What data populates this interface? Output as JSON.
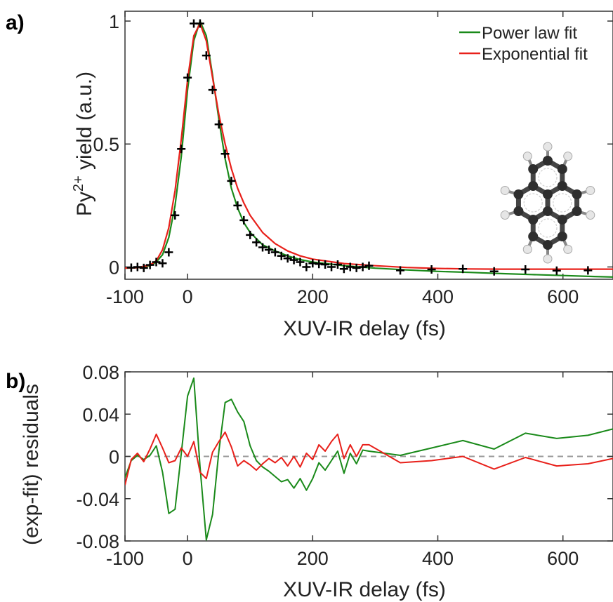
{
  "chart_data": [
    {
      "type": "line",
      "panel_label": "a)",
      "xlabel": "XUV-IR delay (fs)",
      "ylabel": {
        "base": "Py",
        "sup": "2+",
        "rest": " yield (a.u.)"
      },
      "xlim": [
        -100,
        680
      ],
      "ylim": [
        -0.05,
        1.04
      ],
      "xticks": [
        -100,
        0,
        200,
        400,
        600
      ],
      "xtick_labels": [
        "-100",
        "0",
        "200",
        "400",
        "600"
      ],
      "yticks": [
        0,
        0.5,
        1
      ],
      "ytick_labels": [
        "0",
        "0.5",
        "1"
      ],
      "legend_position": "top-right",
      "series": [
        {
          "name": "Power law fit",
          "color": "#1a8a1a",
          "x": [
            -100,
            -80,
            -60,
            -50,
            -40,
            -30,
            -20,
            -10,
            0,
            10,
            20,
            30,
            40,
            50,
            60,
            70,
            80,
            90,
            100,
            120,
            140,
            160,
            180,
            200,
            250,
            300,
            350,
            400,
            450,
            500,
            550,
            600,
            650,
            680
          ],
          "y": [
            -0.005,
            -0.003,
            0.005,
            0.02,
            0.05,
            0.12,
            0.25,
            0.45,
            0.72,
            0.92,
            1.0,
            0.94,
            0.78,
            0.6,
            0.44,
            0.32,
            0.24,
            0.18,
            0.14,
            0.09,
            0.065,
            0.045,
            0.03,
            0.02,
            0.005,
            -0.005,
            -0.012,
            -0.018,
            -0.022,
            -0.027,
            -0.031,
            -0.035,
            -0.039,
            -0.041
          ]
        },
        {
          "name": "Exponential fit",
          "color": "#e8201a",
          "x": [
            -100,
            -80,
            -60,
            -50,
            -40,
            -30,
            -20,
            -10,
            0,
            10,
            20,
            30,
            40,
            50,
            60,
            70,
            80,
            90,
            100,
            120,
            140,
            160,
            180,
            200,
            250,
            300,
            350,
            400,
            450,
            500,
            550,
            600,
            650,
            680
          ],
          "y": [
            -0.005,
            -0.003,
            0.008,
            0.025,
            0.07,
            0.16,
            0.31,
            0.52,
            0.76,
            0.94,
            0.99,
            0.92,
            0.77,
            0.62,
            0.5,
            0.4,
            0.32,
            0.26,
            0.21,
            0.14,
            0.095,
            0.065,
            0.045,
            0.032,
            0.014,
            0.005,
            -0.002,
            -0.006,
            -0.008,
            -0.009,
            -0.009,
            -0.009,
            -0.009,
            -0.009
          ]
        },
        {
          "name": "data",
          "color": "#000000",
          "marker": "plus",
          "x": [
            -90,
            -80,
            -70,
            -60,
            -50,
            -40,
            -30,
            -20,
            -10,
            0,
            10,
            20,
            30,
            40,
            50,
            60,
            70,
            80,
            90,
            100,
            110,
            120,
            130,
            140,
            150,
            160,
            170,
            180,
            190,
            200,
            210,
            220,
            230,
            240,
            250,
            260,
            270,
            280,
            290,
            340,
            390,
            440,
            490,
            540,
            590,
            640
          ],
          "y": [
            -0.003,
            0.0,
            -0.004,
            0.008,
            0.02,
            0.015,
            0.06,
            0.21,
            0.48,
            0.77,
            0.99,
            0.99,
            0.86,
            0.72,
            0.58,
            0.46,
            0.35,
            0.25,
            0.19,
            0.13,
            0.1,
            0.08,
            0.07,
            0.06,
            0.045,
            0.035,
            0.028,
            0.02,
            0.0,
            0.015,
            0.012,
            0.01,
            0.0,
            0.01,
            -0.008,
            0.0,
            -0.004,
            0.0,
            0.005,
            -0.014,
            -0.01,
            -0.008,
            -0.018,
            -0.01,
            -0.015,
            -0.014
          ]
        }
      ]
    },
    {
      "type": "line",
      "panel_label": "b)",
      "xlabel": "XUV-IR delay (fs)",
      "ylabel": "(exp-fit) residuals",
      "xlim": [
        -100,
        680
      ],
      "ylim": [
        -0.08,
        0.08
      ],
      "xticks": [
        -100,
        0,
        200,
        400,
        600
      ],
      "xtick_labels": [
        "-100",
        "0",
        "200",
        "400",
        "600"
      ],
      "yticks": [
        -0.08,
        -0.04,
        0,
        0.04,
        0.08
      ],
      "ytick_labels": [
        "-0.08",
        "-0.04",
        "0",
        "0.04",
        "0.08"
      ],
      "zero_line": {
        "y": 0,
        "style": "dashed",
        "color": "#999999"
      },
      "series": [
        {
          "name": "Power law fit",
          "color": "#1a8a1a",
          "x": [
            -100,
            -90,
            -80,
            -70,
            -60,
            -50,
            -40,
            -30,
            -20,
            -10,
            0,
            10,
            20,
            30,
            40,
            50,
            60,
            70,
            80,
            90,
            100,
            110,
            120,
            130,
            140,
            150,
            160,
            170,
            180,
            190,
            200,
            210,
            220,
            230,
            240,
            250,
            260,
            270,
            280,
            290,
            340,
            390,
            440,
            490,
            540,
            590,
            640,
            680
          ],
          "y": [
            -0.02,
            -0.004,
            0.001,
            -0.003,
            0.001,
            0.01,
            -0.015,
            -0.054,
            -0.05,
            0.003,
            0.057,
            0.074,
            -0.01,
            -0.079,
            -0.055,
            0.005,
            0.051,
            0.054,
            0.042,
            0.033,
            0.01,
            -0.004,
            -0.01,
            -0.014,
            -0.019,
            -0.024,
            -0.022,
            -0.03,
            -0.021,
            -0.032,
            -0.021,
            -0.006,
            -0.013,
            -0.004,
            0.005,
            -0.016,
            0.003,
            -0.007,
            0.006,
            0.005,
            0.001,
            0.008,
            0.015,
            0.007,
            0.022,
            0.017,
            0.02,
            0.026
          ]
        },
        {
          "name": "Exponential fit",
          "color": "#e8201a",
          "x": [
            -100,
            -90,
            -80,
            -70,
            -60,
            -50,
            -40,
            -30,
            -20,
            -10,
            0,
            10,
            20,
            30,
            40,
            50,
            60,
            70,
            80,
            90,
            100,
            110,
            120,
            130,
            140,
            150,
            160,
            170,
            180,
            190,
            200,
            210,
            220,
            230,
            240,
            250,
            260,
            270,
            280,
            290,
            340,
            390,
            440,
            490,
            540,
            590,
            640,
            680
          ],
          "y": [
            -0.027,
            -0.003,
            0.003,
            -0.005,
            0.007,
            0.021,
            0.008,
            -0.006,
            -0.004,
            0.008,
            0.0,
            0.014,
            -0.015,
            -0.021,
            0.004,
            0.014,
            0.023,
            0.009,
            -0.009,
            -0.004,
            -0.008,
            -0.013,
            -0.007,
            -0.002,
            -0.006,
            -0.001,
            -0.009,
            0.0,
            -0.01,
            0.003,
            -0.003,
            0.011,
            0.005,
            0.014,
            0.021,
            -0.002,
            0.011,
            0.0,
            0.011,
            0.011,
            -0.006,
            -0.004,
            0.0,
            -0.012,
            -0.001,
            -0.009,
            -0.007,
            -0.002
          ]
        }
      ]
    }
  ]
}
